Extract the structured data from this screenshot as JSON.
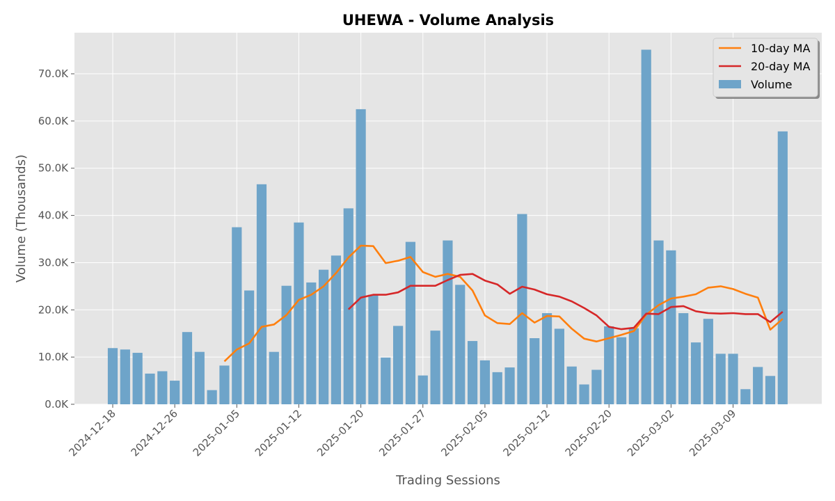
{
  "chart_data": {
    "type": "bar",
    "title": "UHEWA - Volume Analysis",
    "xlabel": "Trading Sessions",
    "ylabel": "Volume (Thousands)",
    "ylim": [
      0,
      78.7
    ],
    "y_ticks": [
      "0.0K",
      "10.0K",
      "20.0K",
      "30.0K",
      "40.0K",
      "50.0K",
      "60.0K",
      "70.0K"
    ],
    "y_tick_values": [
      0,
      10,
      20,
      30,
      40,
      50,
      60,
      70
    ],
    "x_ticks": [
      {
        "label": "2024-12-18",
        "index": 0
      },
      {
        "label": "2024-12-26",
        "index": 5
      },
      {
        "label": "2025-01-05",
        "index": 10
      },
      {
        "label": "2025-01-12",
        "index": 15
      },
      {
        "label": "2025-01-20",
        "index": 20
      },
      {
        "label": "2025-01-27",
        "index": 25
      },
      {
        "label": "2025-02-05",
        "index": 30
      },
      {
        "label": "2025-02-12",
        "index": 35
      },
      {
        "label": "2025-02-20",
        "index": 40
      },
      {
        "label": "2025-03-02",
        "index": 45
      },
      {
        "label": "2025-03-09",
        "index": 50
      }
    ],
    "grid": true,
    "legend_position": "top-right",
    "series": [
      {
        "name": "Volume",
        "kind": "bar",
        "color": "#6ea4c9",
        "values": [
          11.9,
          11.6,
          10.9,
          6.5,
          7.0,
          5.0,
          15.3,
          11.1,
          3.0,
          8.2,
          37.5,
          24.1,
          46.6,
          11.1,
          25.1,
          38.5,
          25.8,
          28.5,
          31.5,
          41.5,
          62.5,
          23.2,
          9.9,
          16.6,
          34.4,
          6.1,
          15.6,
          34.7,
          25.3,
          13.4,
          9.3,
          6.8,
          7.8,
          40.3,
          14.0,
          19.3,
          16.0,
          8.0,
          4.2,
          7.3,
          16.5,
          14.2,
          16.1,
          75.1,
          34.7,
          32.6,
          19.3,
          13.1,
          18.1,
          10.7,
          10.7,
          3.2,
          7.9,
          6.0,
          57.8
        ]
      },
      {
        "name": "10-day MA",
        "kind": "line",
        "color": "#ff7f0e",
        "values": [
          null,
          null,
          null,
          null,
          null,
          null,
          null,
          null,
          null,
          9.1,
          11.6,
          12.9,
          16.4,
          16.9,
          18.9,
          22.1,
          23.2,
          25.0,
          27.8,
          31.1,
          33.6,
          33.5,
          29.9,
          30.4,
          31.2,
          28.0,
          27.0,
          27.6,
          27.0,
          24.1,
          18.8,
          17.2,
          17.0,
          19.3,
          17.3,
          18.7,
          18.6,
          16.0,
          13.9,
          13.3,
          14.0,
          14.7,
          15.5,
          19.0,
          21.0,
          22.4,
          22.8,
          23.3,
          24.7,
          25.0,
          24.4,
          23.4,
          22.6,
          15.8,
          18.1
        ]
      },
      {
        "name": "20-day MA",
        "kind": "line",
        "color": "#d62728",
        "values": [
          null,
          null,
          null,
          null,
          null,
          null,
          null,
          null,
          null,
          null,
          null,
          null,
          null,
          null,
          null,
          null,
          null,
          null,
          null,
          20.1,
          22.6,
          23.2,
          23.2,
          23.7,
          25.1,
          25.1,
          25.1,
          26.3,
          27.4,
          27.6,
          26.2,
          25.4,
          23.4,
          24.9,
          24.3,
          23.3,
          22.8,
          21.8,
          20.4,
          18.8,
          16.4,
          15.9,
          16.2,
          19.2,
          19.1,
          20.6,
          20.8,
          19.7,
          19.3,
          19.2,
          19.3,
          19.1,
          19.1,
          17.4,
          19.6
        ]
      }
    ],
    "legend": [
      "10-day MA",
      "20-day MA",
      "Volume"
    ]
  }
}
